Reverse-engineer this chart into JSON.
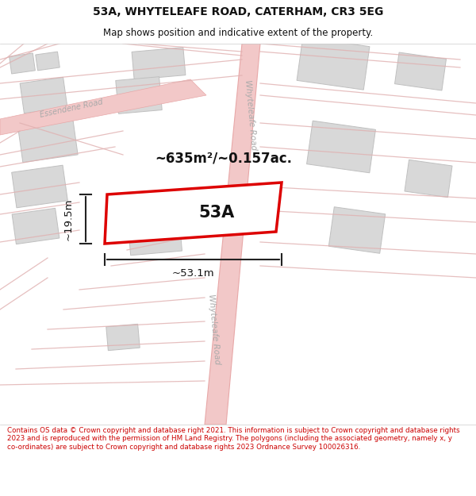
{
  "title": "53A, WHYTELEAFE ROAD, CATERHAM, CR3 5EG",
  "subtitle": "Map shows position and indicative extent of the property.",
  "footer": "Contains OS data © Crown copyright and database right 2021. This information is subject to Crown copyright and database rights 2023 and is reproduced with the permission of HM Land Registry. The polygons (including the associated geometry, namely x, y co-ordinates) are subject to Crown copyright and database rights 2023 Ordnance Survey 100026316.",
  "area_label": "~635m²/~0.157ac.",
  "property_label": "53A",
  "dim_width": "~53.1m",
  "dim_height": "~19.5m",
  "title_color": "#111111",
  "footer_color": "#cc0000",
  "footer_bg": "#f5f5f5",
  "road_fill": "#f2c8c8",
  "road_edge": "#e8a8a8",
  "road_line": "#e0b0b0",
  "building_fill": "#d8d8d8",
  "building_edge": "#c0c0c0",
  "property_fill": "#ffffff",
  "property_edge": "#dd0000",
  "dim_color": "#222222",
  "road_label_color": "#aaaaaa",
  "essendene_label_color": "#aaaaaa",
  "map_bg": "#ffffff"
}
